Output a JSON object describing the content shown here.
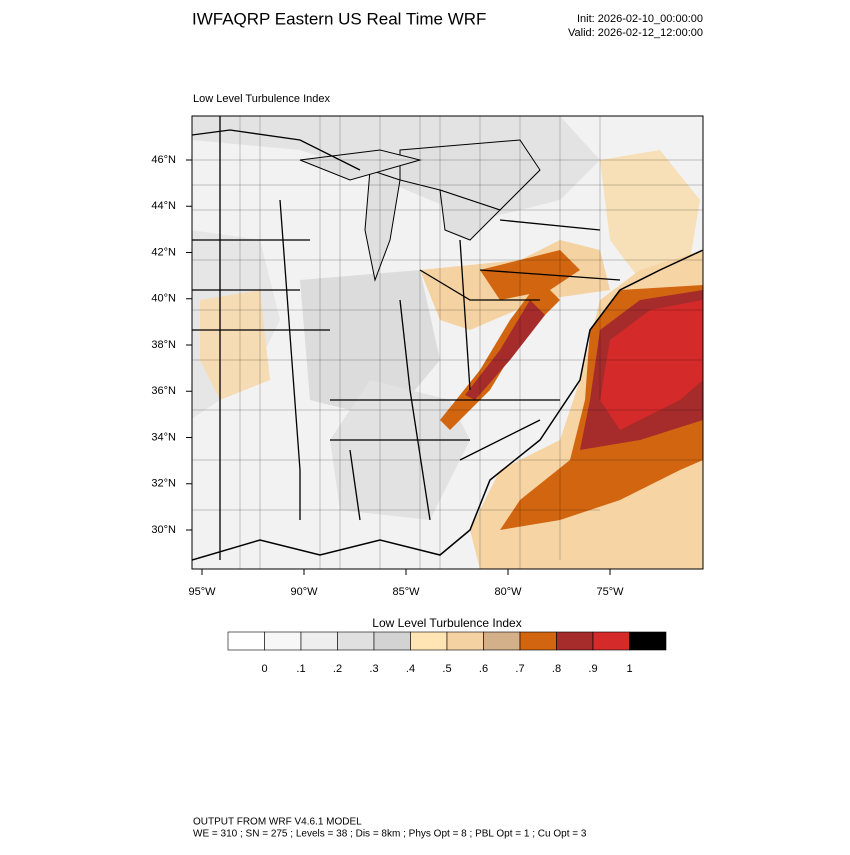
{
  "header": {
    "title": "IWFAQRP Eastern US Real Time WRF",
    "init": "Init: 2026-02-10_00:00:00",
    "valid": "Valid: 2026-02-12_12:00:00"
  },
  "map": {
    "subtitle": "Low Level Turbulence Index",
    "lat_labels": [
      "46°N",
      "44°N",
      "42°N",
      "40°N",
      "38°N",
      "36°N",
      "34°N",
      "32°N",
      "30°N"
    ],
    "lon_labels": [
      "95°W",
      "90°W",
      "85°W",
      "80°W",
      "75°W"
    ]
  },
  "colorbar": {
    "title": "Low Level Turbulence Index",
    "colors": [
      "#ffffff",
      "#f7f7f7",
      "#eeeeee",
      "#e0e0e0",
      "#d3d3d3",
      "#ffe4b4",
      "#f5d2a2",
      "#d4b08a",
      "#d2650f",
      "#a62c2c",
      "#d42a2a",
      "#000000"
    ],
    "labels": [
      "0",
      ".1",
      ".2",
      ".3",
      ".4",
      ".5",
      ".6",
      ".7",
      ".8",
      ".9",
      "1"
    ]
  },
  "footer": {
    "line1": "OUTPUT FROM WRF V4.6.1 MODEL",
    "line2": "WE = 310 ; SN = 275 ; Levels = 38 ; Dis = 8km ; Phys Opt = 8 ; PBL Opt = 1 ; Cu Opt = 3"
  }
}
